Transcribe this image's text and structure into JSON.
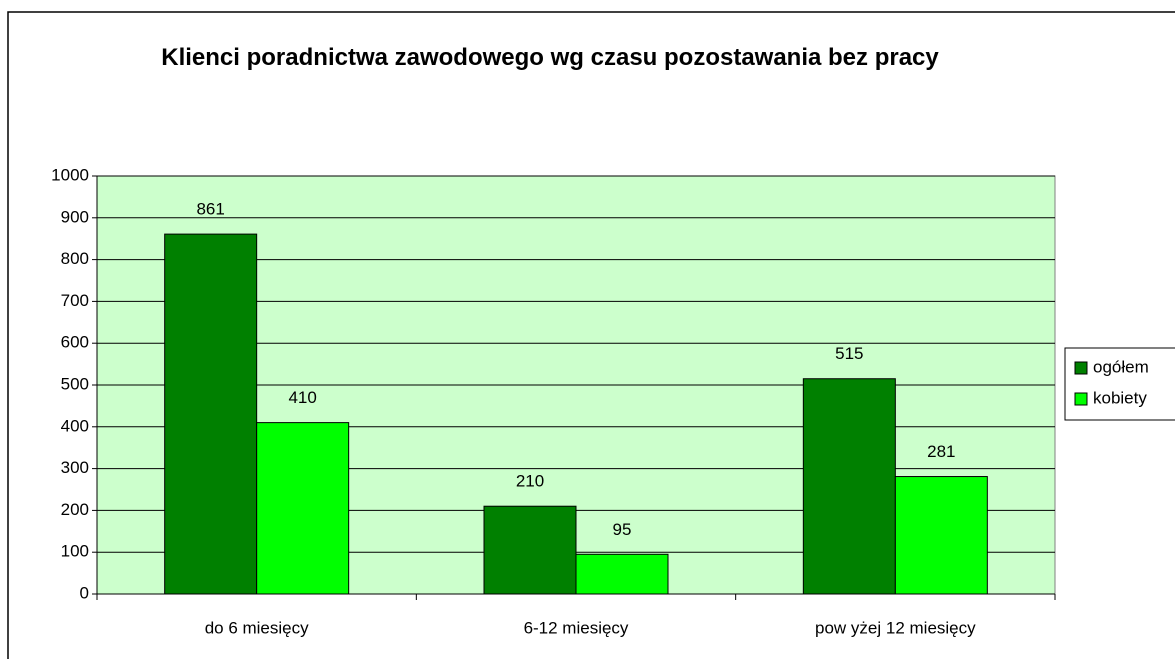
{
  "chart_data": {
    "type": "bar",
    "title": "Klienci poradnictwa zawodowego wg czasu pozostawania bez pracy",
    "categories": [
      "do 6 miesięcy",
      "6-12 miesięcy",
      "pow yżej 12 miesięcy"
    ],
    "series": [
      {
        "name": "ogółem",
        "color": "#008000",
        "values": [
          861,
          210,
          515
        ]
      },
      {
        "name": "kobiety",
        "color": "#00ff00",
        "values": [
          410,
          95,
          281
        ]
      }
    ],
    "ylim": [
      0,
      1000
    ],
    "yticks": [
      0,
      100,
      200,
      300,
      400,
      500,
      600,
      700,
      800,
      900,
      1000
    ],
    "grid": true,
    "legend": "right",
    "plot_background": "#ccffcc"
  }
}
